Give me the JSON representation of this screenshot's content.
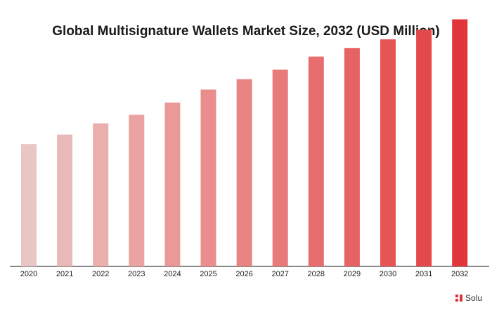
{
  "title": "Global Multisignature Wallets Market Size, 2032 (USD Million)",
  "brand": {
    "text": "Solu",
    "logo_icon": "brand-logo-icon",
    "color": "#e0333a"
  },
  "chart_data": {
    "type": "bar",
    "title": "Global Multisignature Wallets Market Size, 2032 (USD Million)",
    "xlabel": "",
    "ylabel": "",
    "categories": [
      "2020",
      "2021",
      "2022",
      "2023",
      "2024",
      "2025",
      "2026",
      "2027",
      "2028",
      "2029",
      "2030",
      "2031",
      "2032"
    ],
    "values": [
      141,
      152,
      165,
      175,
      189,
      204,
      216,
      227,
      242,
      252,
      262,
      273,
      285
    ],
    "ylim": [
      0,
      300
    ],
    "grid": false,
    "colors": [
      "#e9c6c4",
      "#e9b9b8",
      "#eaaeac",
      "#eaa3a2",
      "#ea9898",
      "#ea8d8d",
      "#e98484",
      "#e87a7a",
      "#e76e6f",
      "#e66263",
      "#e55556",
      "#e4484a",
      "#e2353a"
    ]
  }
}
